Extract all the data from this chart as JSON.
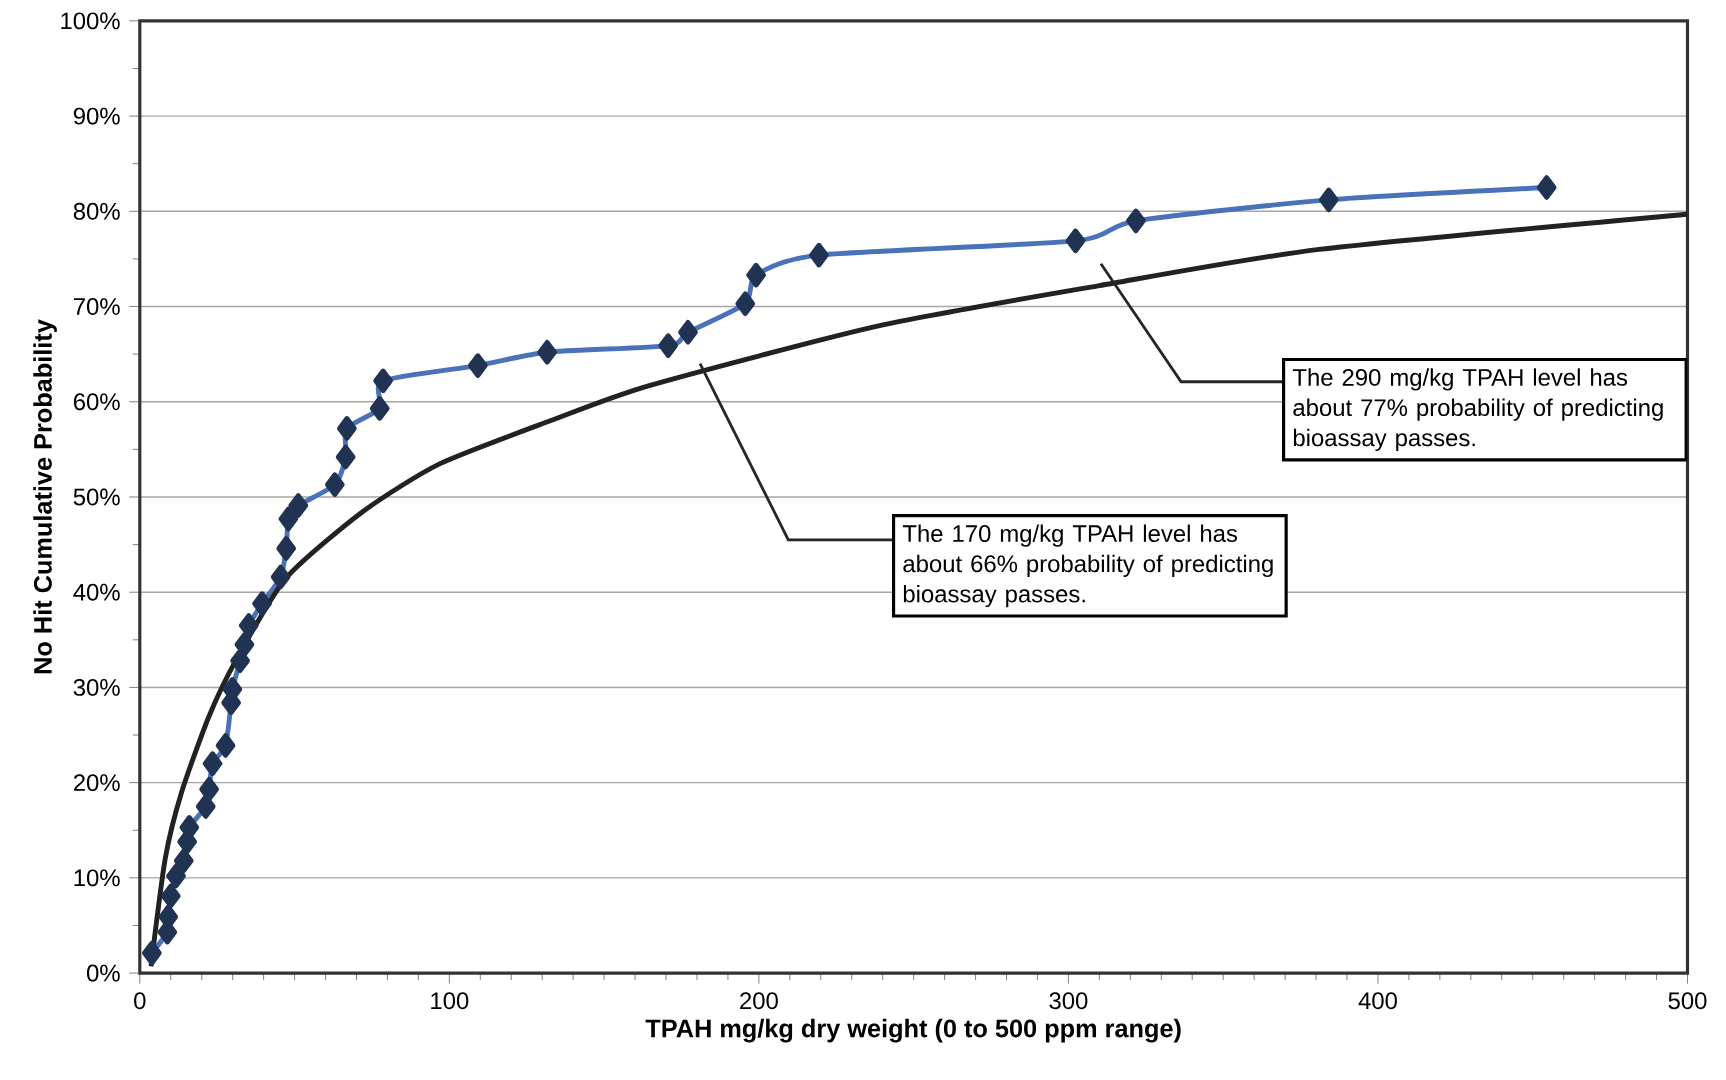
{
  "chart_data": {
    "type": "line",
    "xlabel": "TPAH mg/kg dry weight (0 to 500 ppm range)",
    "ylabel": "No Hit Cumulative Probability",
    "xlim": [
      0,
      500
    ],
    "ylim": [
      0,
      100
    ],
    "xticks": [
      0,
      100,
      200,
      300,
      400,
      500
    ],
    "yticks": [
      {
        "value": 0,
        "label": "0%"
      },
      {
        "value": 10,
        "label": "10%"
      },
      {
        "value": 20,
        "label": "20%"
      },
      {
        "value": 30,
        "label": "30%"
      },
      {
        "value": 40,
        "label": "40%"
      },
      {
        "value": 50,
        "label": "50%"
      },
      {
        "value": 60,
        "label": "60%"
      },
      {
        "value": 70,
        "label": "70%"
      },
      {
        "value": 80,
        "label": "80%"
      },
      {
        "value": 90,
        "label": "90%"
      },
      {
        "value": 100,
        "label": "100%"
      }
    ],
    "grid": "y",
    "series": [
      {
        "color": "#4a72b8",
        "marker": "diamond",
        "x": [
          3.9,
          8.9,
          9.2,
          10,
          11.7,
          14.2,
          15.3,
          16,
          21.3,
          22.4,
          23.5,
          27.7,
          29.5,
          29.9,
          32.4,
          33.8,
          35.2,
          39.5,
          45.5,
          47.3,
          48,
          51.2,
          63,
          66.5,
          66.9,
          77.5,
          78.6,
          109.2,
          131.6,
          170.7,
          177.1,
          195.6,
          199.1,
          219.4,
          302.3,
          321.8,
          384.1,
          454.5
        ],
        "values": [
          2.1,
          4.3,
          5.9,
          8.1,
          10.2,
          11.8,
          13.8,
          15.3,
          17.5,
          19.3,
          22.0,
          23.9,
          28.4,
          29.8,
          32.8,
          34.5,
          36.5,
          38.8,
          41.6,
          44.6,
          47.7,
          49.1,
          51.3,
          54.2,
          57.2,
          59.3,
          62.2,
          63.8,
          65.2,
          65.9,
          67.3,
          70.3,
          73.3,
          75.4,
          76.9,
          79.0,
          81.2,
          82.5
        ]
      },
      {
        "color": "#222222",
        "marker": "none",
        "x": [
          3.6,
          8.2,
          13.5,
          22.4,
          31.3,
          47.3,
          72.2,
          97,
          132.6,
          164.6,
          239,
          310,
          381,
          500
        ],
        "values": [
          0.7,
          12,
          19,
          27,
          33,
          41.5,
          48.5,
          53.5,
          58,
          61.7,
          68,
          72.2,
          76,
          79.7
        ]
      }
    ],
    "annotations": [
      "The 170 mg/kg TPAH level has about 66% probability of predicting bioassay passes.",
      "The 290 mg/kg TPAH level has about 77% probability of predicting bioassay passes."
    ]
  }
}
